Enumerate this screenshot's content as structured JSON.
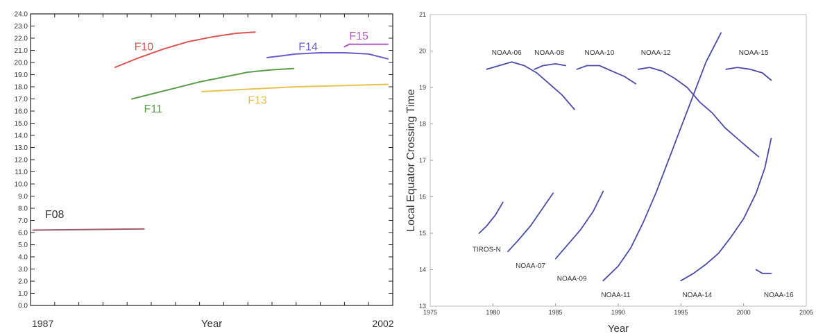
{
  "chart_data": [
    {
      "type": "line",
      "xlabel": "Year",
      "ylabel": "",
      "x_tick_labels": [
        {
          "value": 1987,
          "label": "1987"
        },
        {
          "value": 2002,
          "label": "2002"
        }
      ],
      "xlim": [
        1987,
        2002
      ],
      "ylim": [
        0,
        24
      ],
      "y_ticks": [
        {
          "value": 0,
          "label": "0.0"
        },
        {
          "value": 1,
          "label": "1.0"
        },
        {
          "value": 2,
          "label": "2.0"
        },
        {
          "value": 3,
          "label": "3.0"
        },
        {
          "value": 4,
          "label": "4.0"
        },
        {
          "value": 5,
          "label": "5.0"
        },
        {
          "value": 6,
          "label": "6.0"
        },
        {
          "value": 7,
          "label": "7.0"
        },
        {
          "value": 8,
          "label": "8.0"
        },
        {
          "value": 9,
          "label": "9.0"
        },
        {
          "value": 10,
          "label": "10.0"
        },
        {
          "value": 11,
          "label": "11.0"
        },
        {
          "value": 12,
          "label": "12.0"
        },
        {
          "value": 13,
          "label": "13.0"
        },
        {
          "value": 14,
          "label": "14.0"
        },
        {
          "value": 15,
          "label": "15.0"
        },
        {
          "value": 16,
          "label": "16.0"
        },
        {
          "value": 17,
          "label": "17.0"
        },
        {
          "value": 18,
          "label": "18.0"
        },
        {
          "value": 19,
          "label": "19.0"
        },
        {
          "value": 20,
          "label": "20.0"
        },
        {
          "value": 21,
          "label": "21.0"
        },
        {
          "value": 22,
          "label": "22.0"
        },
        {
          "value": 23,
          "label": "23.0"
        },
        {
          "value": 24,
          "label": "24.0"
        }
      ],
      "grid": false,
      "series": [
        {
          "name": "F08",
          "color": "#a05a6a",
          "points": [
            [
              1987.1,
              6.2
            ],
            [
              1991.7,
              6.3
            ]
          ]
        },
        {
          "name": "F10",
          "color": "#d9534f",
          "points": [
            [
              1990.5,
              19.6
            ],
            [
              1991.5,
              20.4
            ],
            [
              1992.5,
              21.1
            ],
            [
              1993.5,
              21.7
            ],
            [
              1994.5,
              22.1
            ],
            [
              1995.5,
              22.4
            ],
            [
              1996.3,
              22.5
            ]
          ]
        },
        {
          "name": "F11",
          "color": "#5a9e4a",
          "points": [
            [
              1991.2,
              17.0
            ],
            [
              1992.0,
              17.4
            ],
            [
              1993.0,
              17.9
            ],
            [
              1994.0,
              18.4
            ],
            [
              1995.0,
              18.8
            ],
            [
              1996.0,
              19.2
            ],
            [
              1997.0,
              19.4
            ],
            [
              1997.9,
              19.5
            ]
          ]
        },
        {
          "name": "F13",
          "color": "#e8c24a",
          "points": [
            [
              1994.1,
              17.6
            ],
            [
              1996.0,
              17.8
            ],
            [
              1998.0,
              18.0
            ],
            [
              2000.0,
              18.1
            ],
            [
              2001.8,
              18.2
            ]
          ]
        },
        {
          "name": "F14",
          "color": "#6a5acd",
          "points": [
            [
              1996.8,
              20.4
            ],
            [
              1998.0,
              20.7
            ],
            [
              1999.0,
              20.8
            ],
            [
              2000.0,
              20.8
            ],
            [
              2001.0,
              20.7
            ],
            [
              2001.8,
              20.3
            ]
          ]
        },
        {
          "name": "F15",
          "color": "#b05ac8",
          "points": [
            [
              2000.0,
              21.3
            ],
            [
              2000.2,
              21.5
            ],
            [
              2001.8,
              21.5
            ]
          ]
        }
      ],
      "series_label_positions": {
        "F08": [
          1987.6,
          7.2
        ],
        "F10": [
          1991.3,
          21.0
        ],
        "F11": [
          1991.7,
          15.9
        ],
        "F13": [
          1996.0,
          16.6
        ],
        "F14": [
          1998.1,
          21.0
        ],
        "F15": [
          2000.2,
          21.9
        ]
      }
    },
    {
      "type": "line",
      "xlabel": "Year",
      "ylabel": "Local Equator Crossing Time",
      "xlim": [
        1975,
        2005
      ],
      "ylim": [
        13,
        21
      ],
      "x_ticks": [
        {
          "value": 1975,
          "label": "1975"
        },
        {
          "value": 1980,
          "label": "1980"
        },
        {
          "value": 1985,
          "label": "1985"
        },
        {
          "value": 1990,
          "label": "1990"
        },
        {
          "value": 1995,
          "label": "1995"
        },
        {
          "value": 2000,
          "label": "2000"
        },
        {
          "value": 2005,
          "label": "2005"
        }
      ],
      "y_ticks": [
        {
          "value": 13,
          "label": "13"
        },
        {
          "value": 14,
          "label": "14"
        },
        {
          "value": 15,
          "label": "15"
        },
        {
          "value": 16,
          "label": "16"
        },
        {
          "value": 17,
          "label": "17"
        },
        {
          "value": 18,
          "label": "18"
        },
        {
          "value": 19,
          "label": "19"
        },
        {
          "value": 20,
          "label": "20"
        },
        {
          "value": 21,
          "label": "21"
        }
      ],
      "grid": false,
      "series_color": "#4a4aa8",
      "series": [
        {
          "name": "NOAA-06",
          "points": [
            [
              1979.5,
              19.5
            ],
            [
              1980.5,
              19.6
            ],
            [
              1981.5,
              19.7
            ],
            [
              1982.5,
              19.6
            ],
            [
              1983.5,
              19.4
            ],
            [
              1984.5,
              19.1
            ],
            [
              1985.5,
              18.8
            ],
            [
              1986.5,
              18.4
            ]
          ]
        },
        {
          "name": "NOAA-08",
          "points": [
            [
              1983.3,
              19.5
            ],
            [
              1984.0,
              19.6
            ],
            [
              1985.0,
              19.65
            ],
            [
              1985.8,
              19.6
            ]
          ]
        },
        {
          "name": "NOAA-10",
          "points": [
            [
              1986.7,
              19.5
            ],
            [
              1987.5,
              19.6
            ],
            [
              1988.5,
              19.6
            ],
            [
              1989.5,
              19.45
            ],
            [
              1990.5,
              19.3
            ],
            [
              1991.4,
              19.1
            ]
          ]
        },
        {
          "name": "NOAA-12",
          "points": [
            [
              1991.6,
              19.5
            ],
            [
              1992.5,
              19.55
            ],
            [
              1993.5,
              19.45
            ],
            [
              1994.5,
              19.25
            ],
            [
              1995.5,
              19.0
            ],
            [
              1996.5,
              18.6
            ],
            [
              1997.5,
              18.3
            ],
            [
              1998.5,
              17.9
            ],
            [
              1999.5,
              17.6
            ],
            [
              2000.5,
              17.3
            ],
            [
              2001.2,
              17.1
            ]
          ]
        },
        {
          "name": "NOAA-15",
          "points": [
            [
              1998.6,
              19.5
            ],
            [
              1999.5,
              19.55
            ],
            [
              2000.5,
              19.5
            ],
            [
              2001.5,
              19.4
            ],
            [
              2002.2,
              19.2
            ]
          ]
        },
        {
          "name": "TIROS-N",
          "points": [
            [
              1978.9,
              15.0
            ],
            [
              1979.5,
              15.2
            ],
            [
              1980.2,
              15.5
            ],
            [
              1980.8,
              15.85
            ]
          ]
        },
        {
          "name": "NOAA-07",
          "points": [
            [
              1981.2,
              14.5
            ],
            [
              1982.0,
              14.8
            ],
            [
              1983.0,
              15.2
            ],
            [
              1984.0,
              15.7
            ],
            [
              1984.8,
              16.1
            ]
          ]
        },
        {
          "name": "NOAA-09",
          "points": [
            [
              1985.0,
              14.3
            ],
            [
              1986.0,
              14.7
            ],
            [
              1987.0,
              15.1
            ],
            [
              1988.0,
              15.6
            ],
            [
              1988.8,
              16.15
            ]
          ]
        },
        {
          "name": "NOAA-11",
          "points": [
            [
              1988.8,
              13.7
            ],
            [
              1990.0,
              14.1
            ],
            [
              1991.0,
              14.6
            ],
            [
              1992.0,
              15.3
            ],
            [
              1993.0,
              16.1
            ],
            [
              1994.0,
              17.0
            ],
            [
              1995.0,
              17.9
            ],
            [
              1996.0,
              18.8
            ],
            [
              1997.0,
              19.7
            ],
            [
              1998.2,
              20.5
            ]
          ]
        },
        {
          "name": "NOAA-14",
          "points": [
            [
              1995.0,
              13.7
            ],
            [
              1996.0,
              13.9
            ],
            [
              1997.0,
              14.15
            ],
            [
              1998.0,
              14.45
            ],
            [
              1999.0,
              14.9
            ],
            [
              2000.0,
              15.4
            ],
            [
              2001.0,
              16.1
            ],
            [
              2001.7,
              16.8
            ],
            [
              2002.2,
              17.6
            ]
          ]
        },
        {
          "name": "NOAA-16",
          "points": [
            [
              2001.0,
              14.0
            ],
            [
              2001.5,
              13.9
            ],
            [
              2002.2,
              13.9
            ]
          ]
        }
      ],
      "series_label_positions": {
        "NOAA-06": [
          1981.1,
          19.9
        ],
        "NOAA-08": [
          1984.5,
          19.9
        ],
        "NOAA-10": [
          1988.5,
          19.9
        ],
        "NOAA-12": [
          1993.0,
          19.9
        ],
        "NOAA-15": [
          2000.8,
          19.9
        ],
        "TIROS-N": [
          1979.5,
          14.5
        ],
        "NOAA-07": [
          1983.0,
          14.05
        ],
        "NOAA-09": [
          1986.3,
          13.7
        ],
        "NOAA-11": [
          1989.8,
          13.25
        ],
        "NOAA-14": [
          1996.3,
          13.25
        ],
        "NOAA-16": [
          2002.8,
          13.25
        ]
      }
    }
  ]
}
